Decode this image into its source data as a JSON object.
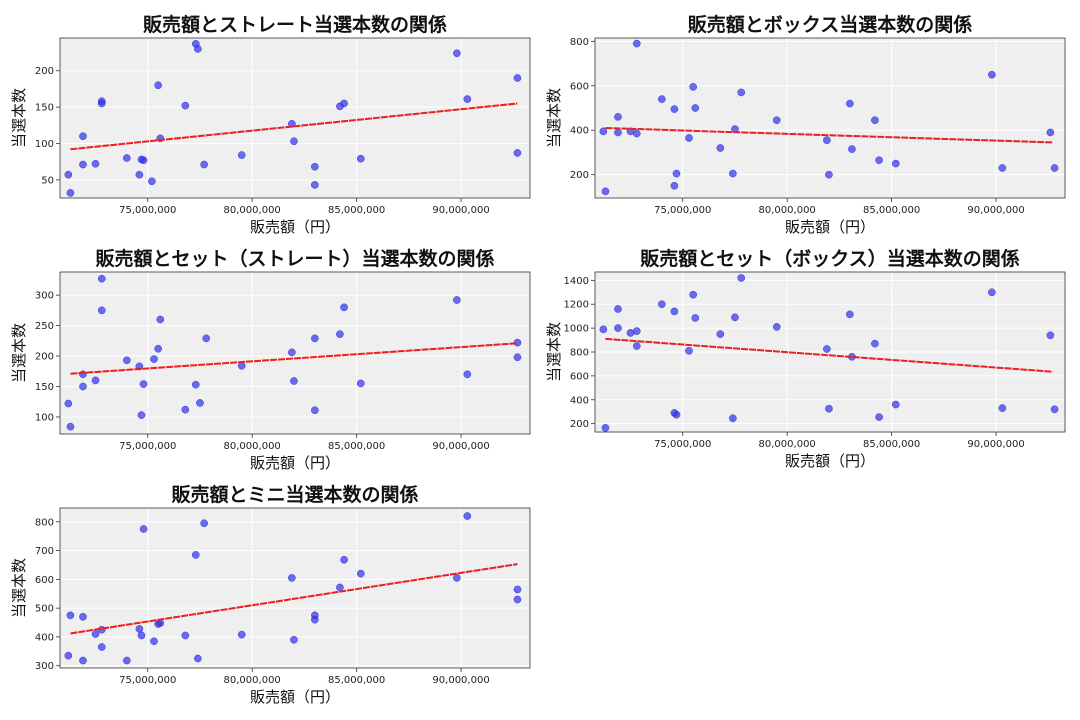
{
  "chart_data": [
    {
      "type": "scatter",
      "title": "販売額とストレート当選本数の関係",
      "xlabel": "販売額（円）",
      "ylabel": "当選本数",
      "xlim": [
        70800000,
        93300000
      ],
      "ylim": [
        25,
        245
      ],
      "xticks": [
        75000000,
        80000000,
        85000000,
        90000000
      ],
      "xtick_labels": [
        "75,000,000",
        "80,000,000",
        "85,000,000",
        "90,000,000"
      ],
      "yticks": [
        50,
        100,
        150,
        200
      ],
      "points": [
        [
          71200000,
          57
        ],
        [
          71300000,
          32
        ],
        [
          71900000,
          110
        ],
        [
          71900000,
          71
        ],
        [
          72500000,
          72
        ],
        [
          72800000,
          158
        ],
        [
          72800000,
          155
        ],
        [
          74000000,
          80
        ],
        [
          74600000,
          57
        ],
        [
          74700000,
          78
        ],
        [
          74800000,
          77
        ],
        [
          75200000,
          48
        ],
        [
          75500000,
          180
        ],
        [
          75600000,
          107
        ],
        [
          76800000,
          152
        ],
        [
          77300000,
          237
        ],
        [
          77400000,
          230
        ],
        [
          77700000,
          71
        ],
        [
          79500000,
          84
        ],
        [
          81900000,
          127
        ],
        [
          82000000,
          103
        ],
        [
          83000000,
          68
        ],
        [
          83000000,
          43
        ],
        [
          84200000,
          151
        ],
        [
          84400000,
          155
        ],
        [
          85200000,
          79
        ],
        [
          89800000,
          224
        ],
        [
          90300000,
          161
        ],
        [
          92700000,
          190
        ],
        [
          92700000,
          87
        ]
      ],
      "trend": [
        [
          71300000,
          92
        ],
        [
          92700000,
          155
        ]
      ],
      "colors": {
        "points": "#3030ee",
        "trend": "#e82020"
      }
    },
    {
      "type": "scatter",
      "title": "販売額とボックス当選本数の関係",
      "xlabel": "販売額（円）",
      "ylabel": "当選本数",
      "xlim": [
        70800000,
        93300000
      ],
      "ylim": [
        95,
        815
      ],
      "xticks": [
        75000000,
        80000000,
        85000000,
        90000000
      ],
      "xtick_labels": [
        "75,000,000",
        "80,000,000",
        "85,000,000",
        "90,000,000"
      ],
      "yticks": [
        200,
        400,
        600,
        800
      ],
      "points": [
        [
          71200000,
          395
        ],
        [
          71300000,
          125
        ],
        [
          71900000,
          460
        ],
        [
          71900000,
          390
        ],
        [
          72500000,
          395
        ],
        [
          72800000,
          790
        ],
        [
          72800000,
          385
        ],
        [
          74000000,
          540
        ],
        [
          74600000,
          495
        ],
        [
          74600000,
          150
        ],
        [
          74700000,
          205
        ],
        [
          75300000,
          365
        ],
        [
          75500000,
          595
        ],
        [
          75600000,
          500
        ],
        [
          76800000,
          320
        ],
        [
          77400000,
          205
        ],
        [
          77500000,
          405
        ],
        [
          77800000,
          570
        ],
        [
          79500000,
          445
        ],
        [
          81900000,
          355
        ],
        [
          82000000,
          200
        ],
        [
          83000000,
          520
        ],
        [
          83100000,
          315
        ],
        [
          84200000,
          445
        ],
        [
          84400000,
          265
        ],
        [
          85200000,
          250
        ],
        [
          89800000,
          650
        ],
        [
          90300000,
          230
        ],
        [
          92600000,
          390
        ],
        [
          92800000,
          230
        ]
      ],
      "trend": [
        [
          71300000,
          410
        ],
        [
          92700000,
          345
        ]
      ],
      "colors": {
        "points": "#3030ee",
        "trend": "#e82020"
      }
    },
    {
      "type": "scatter",
      "title": "販売額とセット（ストレート）当選本数の関係",
      "xlabel": "販売額（円）",
      "ylabel": "当選本数",
      "xlim": [
        70800000,
        93300000
      ],
      "ylim": [
        72,
        338
      ],
      "xticks": [
        75000000,
        80000000,
        85000000,
        90000000
      ],
      "xtick_labels": [
        "75,000,000",
        "80,000,000",
        "85,000,000",
        "90,000,000"
      ],
      "yticks": [
        100,
        150,
        200,
        250,
        300
      ],
      "points": [
        [
          71200000,
          122
        ],
        [
          71300000,
          84
        ],
        [
          71900000,
          170
        ],
        [
          71900000,
          150
        ],
        [
          72500000,
          160
        ],
        [
          72800000,
          327
        ],
        [
          72800000,
          275
        ],
        [
          74000000,
          193
        ],
        [
          74600000,
          183
        ],
        [
          74700000,
          103
        ],
        [
          74800000,
          154
        ],
        [
          75300000,
          195
        ],
        [
          75500000,
          212
        ],
        [
          75600000,
          260
        ],
        [
          76800000,
          112
        ],
        [
          77300000,
          153
        ],
        [
          77500000,
          123
        ],
        [
          77800000,
          229
        ],
        [
          79500000,
          184
        ],
        [
          81900000,
          206
        ],
        [
          82000000,
          159
        ],
        [
          83000000,
          229
        ],
        [
          83000000,
          111
        ],
        [
          84200000,
          236
        ],
        [
          84400000,
          280
        ],
        [
          85200000,
          155
        ],
        [
          89800000,
          292
        ],
        [
          90300000,
          170
        ],
        [
          92700000,
          222
        ],
        [
          92700000,
          198
        ]
      ],
      "trend": [
        [
          71300000,
          171
        ],
        [
          92700000,
          221
        ]
      ],
      "colors": {
        "points": "#3030ee",
        "trend": "#e82020"
      }
    },
    {
      "type": "scatter",
      "title": "販売額とセット（ボックス）当選本数の関係",
      "xlabel": "販売額（円）",
      "ylabel": "当選本数",
      "xlim": [
        70800000,
        93300000
      ],
      "ylim": [
        130,
        1470
      ],
      "xticks": [
        75000000,
        80000000,
        85000000,
        90000000
      ],
      "xtick_labels": [
        "75,000,000",
        "80,000,000",
        "85,000,000",
        "90,000,000"
      ],
      "yticks": [
        200,
        400,
        600,
        800,
        1000,
        1200,
        1400
      ],
      "points": [
        [
          71200000,
          990
        ],
        [
          71300000,
          165
        ],
        [
          71900000,
          1160
        ],
        [
          71900000,
          1000
        ],
        [
          72500000,
          960
        ],
        [
          72800000,
          975
        ],
        [
          72800000,
          850
        ],
        [
          74000000,
          1200
        ],
        [
          74600000,
          1140
        ],
        [
          74600000,
          290
        ],
        [
          74700000,
          275
        ],
        [
          75300000,
          810
        ],
        [
          75500000,
          1280
        ],
        [
          75600000,
          1085
        ],
        [
          76800000,
          950
        ],
        [
          77400000,
          245
        ],
        [
          77500000,
          1090
        ],
        [
          77800000,
          1420
        ],
        [
          79500000,
          1010
        ],
        [
          81900000,
          825
        ],
        [
          82000000,
          325
        ],
        [
          83000000,
          1115
        ],
        [
          83100000,
          760
        ],
        [
          84200000,
          870
        ],
        [
          84400000,
          255
        ],
        [
          85200000,
          360
        ],
        [
          89800000,
          1300
        ],
        [
          90300000,
          330
        ],
        [
          92600000,
          940
        ],
        [
          92800000,
          320
        ]
      ],
      "trend": [
        [
          71300000,
          910
        ],
        [
          92700000,
          635
        ]
      ],
      "colors": {
        "points": "#3030ee",
        "trend": "#e82020"
      }
    },
    {
      "type": "scatter",
      "title": "販売額とミニ当選本数の関係",
      "xlabel": "販売額（円）",
      "ylabel": "当選本数",
      "xlim": [
        70800000,
        93300000
      ],
      "ylim": [
        292,
        848
      ],
      "xticks": [
        75000000,
        80000000,
        85000000,
        90000000
      ],
      "xtick_labels": [
        "75,000,000",
        "80,000,000",
        "85,000,000",
        "90,000,000"
      ],
      "yticks": [
        300,
        400,
        500,
        600,
        700,
        800
      ],
      "points": [
        [
          71200000,
          335
        ],
        [
          71300000,
          475
        ],
        [
          71900000,
          470
        ],
        [
          71900000,
          318
        ],
        [
          72500000,
          410
        ],
        [
          72800000,
          425
        ],
        [
          72800000,
          365
        ],
        [
          74000000,
          318
        ],
        [
          74600000,
          428
        ],
        [
          74700000,
          405
        ],
        [
          74800000,
          775
        ],
        [
          75300000,
          385
        ],
        [
          75500000,
          445
        ],
        [
          75600000,
          448
        ],
        [
          76800000,
          405
        ],
        [
          77300000,
          685
        ],
        [
          77400000,
          325
        ],
        [
          77700000,
          795
        ],
        [
          79500000,
          408
        ],
        [
          81900000,
          605
        ],
        [
          82000000,
          390
        ],
        [
          83000000,
          475
        ],
        [
          83000000,
          460
        ],
        [
          84200000,
          572
        ],
        [
          84400000,
          668
        ],
        [
          85200000,
          620
        ],
        [
          89800000,
          605
        ],
        [
          90300000,
          820
        ],
        [
          92700000,
          565
        ],
        [
          92700000,
          530
        ]
      ],
      "trend": [
        [
          71300000,
          412
        ],
        [
          92700000,
          653
        ]
      ],
      "colors": {
        "points": "#3030ee",
        "trend": "#e82020"
      }
    }
  ]
}
